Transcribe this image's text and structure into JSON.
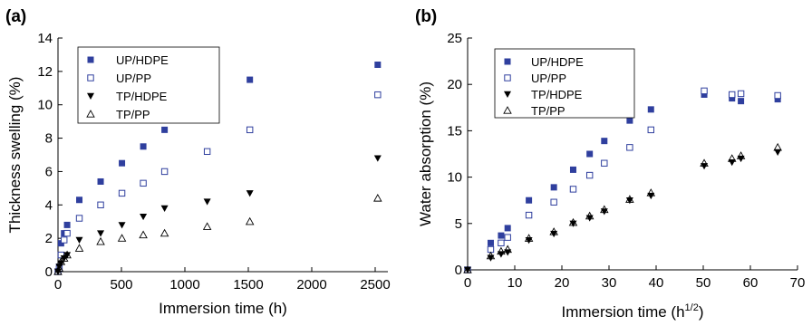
{
  "colors": {
    "filled_square": "#2f3f9e",
    "open_square": "#2f3f9e",
    "triangle": "#000000",
    "axis": "#000000"
  },
  "chart_data": [
    {
      "panel_label": "(a)",
      "type": "scatter",
      "xlabel": "Immersion time (h)",
      "ylabel": "Thickness swelling (%)",
      "xlim": [
        0,
        2600
      ],
      "ylim": [
        0,
        14
      ],
      "xticks": [
        0,
        500,
        1000,
        1500,
        2000,
        2500
      ],
      "yticks": [
        0,
        2,
        4,
        6,
        8,
        10,
        12,
        14
      ],
      "grid": false,
      "legend_position": "top-left",
      "series": [
        {
          "name": "UP/HDPE",
          "marker": "filled-square",
          "x": [
            0,
            10,
            24,
            48,
            72,
            168,
            336,
            504,
            672,
            840,
            1176,
            1512,
            2520
          ],
          "y": [
            0,
            0.3,
            1.7,
            2.3,
            2.8,
            4.3,
            5.4,
            6.5,
            7.5,
            8.5,
            10.9,
            11.5,
            12.4
          ]
        },
        {
          "name": "UP/PP",
          "marker": "open-square",
          "x": [
            0,
            10,
            24,
            48,
            72,
            168,
            336,
            504,
            672,
            840,
            1176,
            1512,
            2520
          ],
          "y": [
            0,
            0.2,
            1.0,
            1.9,
            2.3,
            3.2,
            4.0,
            4.7,
            5.3,
            6.0,
            7.2,
            8.5,
            10.6
          ]
        },
        {
          "name": "TP/HDPE",
          "marker": "filled-triangle",
          "x": [
            0,
            10,
            24,
            48,
            72,
            168,
            336,
            504,
            672,
            840,
            1176,
            1512,
            2520
          ],
          "y": [
            0,
            0.3,
            0.5,
            0.8,
            1.0,
            1.9,
            2.3,
            2.8,
            3.3,
            3.8,
            4.2,
            4.7,
            6.8
          ]
        },
        {
          "name": "TP/PP",
          "marker": "open-triangle",
          "x": [
            0,
            10,
            24,
            48,
            72,
            168,
            336,
            504,
            672,
            840,
            1176,
            1512,
            2520
          ],
          "y": [
            0,
            0.2,
            0.6,
            0.8,
            1.0,
            1.4,
            1.8,
            2.0,
            2.2,
            2.3,
            2.7,
            3.0,
            4.4
          ]
        }
      ]
    },
    {
      "panel_label": "(b)",
      "type": "scatter",
      "xlabel_main": "Immersion time (h",
      "xlabel_sup": "1/2",
      "xlabel_end": ")",
      "ylabel": "Water absorption (%)",
      "xlim": [
        0,
        70
      ],
      "ylim": [
        0,
        25
      ],
      "xticks": [
        0,
        10,
        20,
        30,
        40,
        50,
        60,
        70
      ],
      "yticks": [
        0,
        5,
        10,
        15,
        20,
        25
      ],
      "grid": false,
      "legend_position": "top-left",
      "series": [
        {
          "name": "UP/HDPE",
          "marker": "filled-square",
          "x": [
            0,
            4.9,
            7.1,
            8.5,
            13.0,
            18.3,
            22.4,
            25.9,
            29.0,
            34.4,
            38.9,
            50.2,
            56.1,
            58.0,
            65.8
          ],
          "y": [
            0,
            2.9,
            3.7,
            4.5,
            7.5,
            8.9,
            10.8,
            12.5,
            13.9,
            16.1,
            17.3,
            18.9,
            18.5,
            18.2,
            18.4
          ]
        },
        {
          "name": "UP/PP",
          "marker": "open-square",
          "x": [
            0,
            4.9,
            7.1,
            8.5,
            13.0,
            18.3,
            22.4,
            25.9,
            29.0,
            34.4,
            38.9,
            50.2,
            56.1,
            58.0,
            65.8
          ],
          "y": [
            0,
            2.2,
            2.9,
            3.5,
            5.9,
            7.3,
            8.7,
            10.2,
            11.5,
            13.2,
            15.1,
            19.3,
            18.9,
            19.0,
            18.8
          ]
        },
        {
          "name": "TP/HDPE",
          "marker": "filled-triangle",
          "x": [
            0,
            4.9,
            7.1,
            8.5,
            13.0,
            18.3,
            22.4,
            25.9,
            29.0,
            34.4,
            38.9,
            50.2,
            56.1,
            58.0,
            65.8
          ],
          "y": [
            0,
            1.3,
            1.7,
            1.9,
            3.2,
            3.9,
            5.0,
            5.6,
            6.3,
            7.5,
            8.0,
            11.2,
            11.6,
            12.0,
            12.7
          ]
        },
        {
          "name": "TP/PP",
          "marker": "open-triangle",
          "x": [
            0,
            4.9,
            7.1,
            8.5,
            13.0,
            18.3,
            22.4,
            25.9,
            29.0,
            34.4,
            38.9,
            50.2,
            56.1,
            58.0,
            65.8
          ],
          "y": [
            0,
            1.5,
            2.0,
            2.2,
            3.4,
            4.1,
            5.1,
            5.8,
            6.5,
            7.6,
            8.3,
            11.5,
            12.0,
            12.3,
            13.2
          ]
        }
      ]
    }
  ]
}
